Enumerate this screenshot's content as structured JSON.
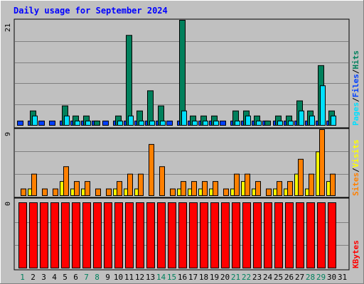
{
  "chart_data": [
    {
      "type": "bar",
      "panel": "hits-files-pages",
      "title": "Daily usage for September 2024",
      "categories": [
        "1",
        "2",
        "3",
        "4",
        "5",
        "6",
        "7",
        "8",
        "9",
        "10",
        "11",
        "12",
        "13",
        "14",
        "15",
        "16",
        "17",
        "18",
        "19",
        "20",
        "21",
        "22",
        "23",
        "24",
        "25",
        "26",
        "27",
        "28",
        "29",
        "30",
        "31"
      ],
      "ymax_label": "21",
      "ylim": [
        0,
        21
      ],
      "grid": true,
      "series": [
        {
          "name": "Hits",
          "color": "#00805c",
          "values": [
            0,
            3,
            0,
            0,
            4,
            2,
            2,
            1,
            0,
            2,
            18,
            3,
            7,
            4,
            0,
            21,
            2,
            2,
            2,
            0,
            3,
            3,
            2,
            1,
            2,
            2,
            5,
            3,
            12,
            3,
            null
          ]
        },
        {
          "name": "Files",
          "color": "#00e0ff",
          "values": [
            0,
            2,
            0,
            0,
            2,
            1,
            1,
            0,
            0,
            1,
            2,
            1,
            1,
            1,
            0,
            3,
            1,
            1,
            1,
            0,
            1,
            2,
            1,
            0,
            1,
            1,
            3,
            2,
            8,
            2,
            null
          ]
        },
        {
          "name": "Pages",
          "color": "#0040ff",
          "values": [
            1,
            1,
            1,
            1,
            1,
            1,
            1,
            1,
            1,
            1,
            1,
            1,
            1,
            1,
            1,
            1,
            1,
            1,
            1,
            1,
            1,
            1,
            1,
            1,
            1,
            1,
            1,
            1,
            1,
            1,
            null
          ]
        }
      ]
    },
    {
      "type": "bar",
      "panel": "visits-sites",
      "categories": [
        "1",
        "2",
        "3",
        "4",
        "5",
        "6",
        "7",
        "8",
        "9",
        "10",
        "11",
        "12",
        "13",
        "14",
        "15",
        "16",
        "17",
        "18",
        "19",
        "20",
        "21",
        "22",
        "23",
        "24",
        "25",
        "26",
        "27",
        "28",
        "29",
        "30",
        "31"
      ],
      "ymax_label": "9",
      "ylim": [
        0,
        9
      ],
      "grid": true,
      "series": [
        {
          "name": "Visits",
          "color": "#ffff00",
          "values": [
            0,
            1,
            0,
            0,
            2,
            1,
            1,
            0,
            0,
            1,
            1,
            1,
            0,
            0,
            0,
            1,
            1,
            1,
            1,
            0,
            1,
            2,
            1,
            0,
            1,
            1,
            3,
            1,
            6,
            2,
            null
          ]
        },
        {
          "name": "Sites",
          "color": "#ff8000",
          "values": [
            1,
            3,
            1,
            1,
            4,
            2,
            2,
            1,
            1,
            2,
            3,
            3,
            7,
            4,
            1,
            2,
            2,
            2,
            2,
            1,
            3,
            3,
            2,
            1,
            2,
            2,
            5,
            3,
            9,
            3,
            null
          ]
        }
      ]
    },
    {
      "type": "bar",
      "panel": "kbytes",
      "categories": [
        "1",
        "2",
        "3",
        "4",
        "5",
        "6",
        "7",
        "8",
        "9",
        "10",
        "11",
        "12",
        "13",
        "14",
        "15",
        "16",
        "17",
        "18",
        "19",
        "20",
        "21",
        "22",
        "23",
        "24",
        "25",
        "26",
        "27",
        "28",
        "29",
        "30",
        "31"
      ],
      "ymax_label": "0",
      "ylim": [
        0,
        1
      ],
      "grid": true,
      "series": [
        {
          "name": "KBytes",
          "color": "#ff0000",
          "values": [
            1,
            1,
            1,
            1,
            1,
            1,
            1,
            1,
            1,
            1,
            1,
            1,
            1,
            1,
            1,
            1,
            1,
            1,
            1,
            1,
            1,
            1,
            1,
            1,
            1,
            1,
            1,
            1,
            1,
            1,
            null
          ]
        }
      ]
    }
  ],
  "legend_top": {
    "pages": "Pages",
    "files": "Files",
    "hits": "Hits",
    "sep": "/"
  },
  "legend_mid": {
    "sites": "Sites",
    "visits": "Visits",
    "sep": "/"
  },
  "legend_bot": {
    "kbytes": "KBytes"
  },
  "weekend_days": [
    1,
    7,
    8,
    14,
    15,
    21,
    22,
    28,
    29
  ],
  "colors": {
    "background": "#c0c0c0",
    "plot_bg": "#c0c0c0",
    "title": "#0000ff",
    "weekday_label": "#000000",
    "weekend_label": "#00805c",
    "grid": "#808080"
  }
}
